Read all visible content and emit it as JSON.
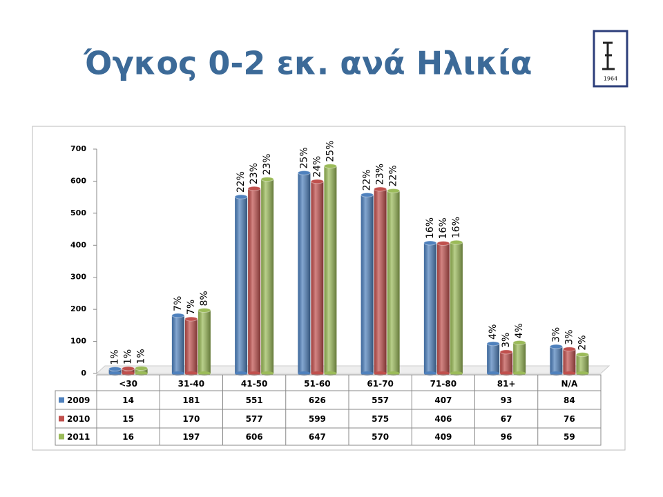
{
  "title": "Όγκος 0-2 εκ. ανά Ηλικία",
  "logo": {
    "year": "1964"
  },
  "chart_data": {
    "type": "bar",
    "categories": [
      "<30",
      "31-40",
      "41-50",
      "51-60",
      "61-70",
      "71-80",
      "81+",
      "N/A"
    ],
    "series": [
      {
        "name": "2009",
        "color": "#4f81bd",
        "values": [
          14,
          181,
          551,
          626,
          557,
          407,
          93,
          84
        ],
        "share_labels": [
          "1%",
          "7%",
          "22%",
          "25%",
          "22%",
          "16%",
          "4%",
          "3%"
        ]
      },
      {
        "name": "2010",
        "color": "#c0504d",
        "values": [
          15,
          170,
          577,
          599,
          575,
          406,
          67,
          76
        ],
        "share_labels": [
          "1%",
          "7%",
          "23%",
          "24%",
          "23%",
          "16%",
          "3%",
          "3%"
        ]
      },
      {
        "name": "2011",
        "color": "#9bbb59",
        "values": [
          16,
          197,
          606,
          647,
          570,
          409,
          96,
          59
        ],
        "share_labels": [
          "1%",
          "8%",
          "23%",
          "25%",
          "22%",
          "16%",
          "4%",
          "2%"
        ]
      }
    ],
    "ylim": [
      0,
      700
    ],
    "yticks": [
      0,
      100,
      200,
      300,
      400,
      500,
      600,
      700
    ]
  }
}
